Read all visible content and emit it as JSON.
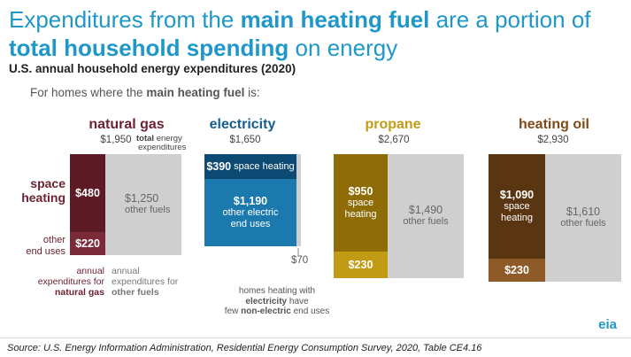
{
  "header": {
    "title_part1": "Expenditures from the ",
    "title_part2": "main heating fuel",
    "title_part3": " are a portion of",
    "title_part4": "total household spending",
    "title_part5": " on energy",
    "subtitle": "U.S. annual household energy expenditures (2020)",
    "intro_part1": "For homes where the ",
    "intro_part2": "main heating fuel",
    "intro_part3": " is:"
  },
  "colors": {
    "natural_gas_dark": "#5b1a24",
    "natural_gas_light": "#7b2a3a",
    "electricity_dark": "#0d4a73",
    "electricity_light": "#1b79ad",
    "propane_dark": "#8e6d09",
    "propane_light": "#c29b14",
    "heating_oil_dark": "#5a3512",
    "heating_oil_light": "#8e5a28",
    "other_fuels": "#cfcfcf",
    "title": "#1f97c9"
  },
  "chart_data": {
    "type": "bar",
    "series_note": "stacked: main fuel space heating + main fuel other end uses + other fuels",
    "groups": [
      {
        "fuel": "natural gas",
        "total_label": "$1,950",
        "total": 1950,
        "space_heating": 480,
        "space_heating_label": "$480",
        "other_end_uses": 220,
        "other_end_uses_label": "$220",
        "other_fuels": 1250,
        "other_fuels_label": "$1,250"
      },
      {
        "fuel": "electricity",
        "total_label": "$1,650",
        "total": 1650,
        "space_heating": 390,
        "space_heating_label": "$390",
        "other_end_uses": 1190,
        "other_end_uses_label": "$1,190",
        "other_fuels": 70,
        "other_fuels_label": "$70"
      },
      {
        "fuel": "propane",
        "total_label": "$2,670",
        "total": 2670,
        "space_heating": 950,
        "space_heating_label": "$950",
        "other_end_uses": 230,
        "other_end_uses_label": "$230",
        "other_fuels": 1490,
        "other_fuels_label": "$1,490"
      },
      {
        "fuel": "heating oil",
        "total_label": "$2,930",
        "total": 2930,
        "space_heating": 1090,
        "space_heating_label": "$1,090",
        "other_end_uses": 230,
        "other_end_uses_label": "$230",
        "other_fuels": 1610,
        "other_fuels_label": "$1,610"
      }
    ],
    "text_labels": {
      "total_note_1": "total",
      "total_note_2": " energy",
      "total_note_3": "expenditures",
      "space_heating_side": "space heating",
      "space_heating_side_1": "space",
      "space_heating_side_2": "heating",
      "other_end_uses_side_1": "other",
      "other_end_uses_side_2": "end uses",
      "other_fuels": "other fuels",
      "other_electric_1": "other electric",
      "other_electric_2": "end uses",
      "space_heating_inline": " space heating",
      "annual_label_1": "annual",
      "annual_label_2": "expenditures for",
      "annual_label_3": "natural gas",
      "annual_other_1": "annual",
      "annual_other_2": "expenditures for",
      "annual_other_3": "other fuels",
      "elec_note_1": "homes heating with",
      "elec_note_2": "electricity",
      "elec_note_3": " have",
      "elec_note_4": "few ",
      "elec_note_5": "non-electric",
      "elec_note_6": " end uses"
    }
  },
  "footer": {
    "source": "Source: U.S. Energy Information Administration, Residential Energy Consumption Survey, 2020, Table CE4.16",
    "logo": "eia"
  }
}
